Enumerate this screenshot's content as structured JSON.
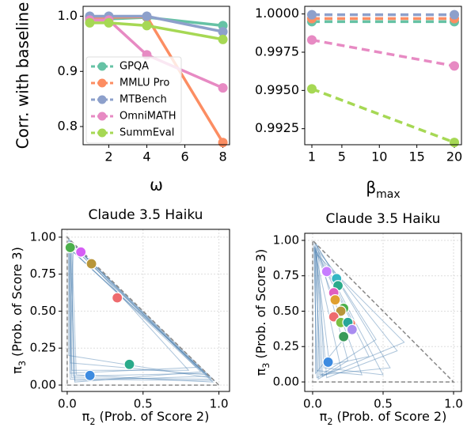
{
  "chart_data": [
    {
      "type": "line",
      "xlabel": "ω",
      "ylabel": "Corr. with baseline",
      "linestyle": "solid",
      "legend": "lower left",
      "grid": false,
      "x": [
        1,
        2,
        4,
        8
      ],
      "xlim": [
        0.65,
        8.35
      ],
      "xticks": [
        2,
        4,
        6,
        8
      ],
      "ylim": [
        0.767,
        1.018
      ],
      "yticks": [
        0.8,
        0.9,
        {
          "value": 1,
          "label": "1.0"
        }
      ],
      "series": [
        {
          "name": "GPQA",
          "color": "#66c2a5",
          "values": [
            0.995,
            0.995,
            0.998,
            0.983
          ]
        },
        {
          "name": "MMLU Pro",
          "color": "#fc8d62",
          "values": [
            0.998,
            0.998,
            0.999,
            0.771
          ]
        },
        {
          "name": "MTBench",
          "color": "#8da0cb",
          "values": [
            1.0,
            1.0,
            1.0,
            0.972
          ]
        },
        {
          "name": "OmniMATH",
          "color": "#e78ac3",
          "values": [
            0.993,
            0.993,
            0.93,
            0.87
          ]
        },
        {
          "name": "SummEval",
          "color": "#a6d854",
          "values": [
            0.988,
            0.988,
            0.983,
            0.958
          ]
        }
      ]
    },
    {
      "type": "line",
      "xlabel": {
        "main": "β",
        "sub": "max"
      },
      "linestyle": "dashed",
      "grid": false,
      "x": [
        1,
        20
      ],
      "xlim": [
        0.05,
        20.95
      ],
      "xticks": [
        1,
        5,
        10,
        15,
        20
      ],
      "ylim": [
        0.99145,
        1.0005
      ],
      "yticks": [
        0.9925,
        {
          "value": 0.995,
          "label": "0.9950"
        },
        0.9975,
        {
          "value": 1,
          "label": "1.0000"
        }
      ],
      "series": [
        {
          "name": "GPQA",
          "color": "#66c2a5",
          "values": [
            0.9995,
            0.9995
          ]
        },
        {
          "name": "MMLU Pro",
          "color": "#fc8d62",
          "values": [
            0.9997,
            0.9997
          ]
        },
        {
          "name": "MTBench",
          "color": "#8da0cb",
          "values": [
            0.99995,
            0.99995
          ]
        },
        {
          "name": "OmniMATH",
          "color": "#e78ac3",
          "values": [
            0.9983,
            0.9966
          ]
        },
        {
          "name": "SummEval",
          "color": "#a6d854",
          "values": [
            0.9951,
            0.9916
          ]
        }
      ]
    },
    {
      "type": "scatter",
      "title": "Claude 3.5 Haiku",
      "grid": true,
      "xlabel": {
        "main": "π",
        "sub": "2",
        "rest": " (Prob. of Score 2)"
      },
      "ylabel": {
        "main": "π",
        "sub": "3",
        "rest": " (Prob. of Score 3)"
      },
      "xlim": [
        -0.036,
        1.07
      ],
      "xticks": [
        {
          "value": 0,
          "label": "0.0"
        },
        0.5,
        {
          "value": 1,
          "label": "1.0"
        }
      ],
      "ylim": [
        -0.043,
        1.053
      ],
      "yticks": [
        {
          "value": 0,
          "label": "0.00"
        },
        0.25,
        {
          "value": 0.5,
          "label": "0.50"
        },
        0.75,
        {
          "value": 1,
          "label": "1.00"
        }
      ],
      "triangle_color": "#4a7fb0",
      "triangles": [
        {
          "x": [
            0.02,
            0.95,
            0.03
          ],
          "y": [
            0.97,
            0.04,
            0.05
          ]
        },
        {
          "x": [
            0.01,
            0.97,
            0.02
          ],
          "y": [
            0.98,
            0.03,
            0.04
          ]
        },
        {
          "x": [
            0.03,
            0.9,
            0.04
          ],
          "y": [
            0.96,
            0.08,
            0.06
          ]
        },
        {
          "x": [
            0.02,
            0.93,
            0.05
          ],
          "y": [
            0.95,
            0.06,
            0.03
          ]
        },
        {
          "x": [
            0.02,
            0.85,
            0.02
          ],
          "y": [
            0.92,
            0.12,
            0.08
          ]
        },
        {
          "x": [
            0.03,
            0.96,
            0.06
          ],
          "y": [
            0.94,
            0.02,
            0.07
          ]
        },
        {
          "x": [
            0.01,
            0.8,
            0.03
          ],
          "y": [
            0.99,
            0.1,
            0.1
          ]
        },
        {
          "x": [
            0.04,
            0.92,
            0.02
          ],
          "y": [
            0.9,
            0.07,
            0.15
          ]
        },
        {
          "x": [
            0.02,
            0.88,
            0.05
          ],
          "y": [
            0.97,
            0.09,
            0.02
          ]
        },
        {
          "x": [
            0.01,
            0.94,
            0.01
          ],
          "y": [
            0.93,
            0.05,
            0.2
          ]
        }
      ],
      "points": {
        "x": [
          0.02,
          0.09,
          0.16,
          0.33,
          0.41,
          0.15
        ],
        "y": [
          0.93,
          0.9,
          0.82,
          0.59,
          0.14,
          0.065
        ],
        "colors": [
          "#4cb04c",
          "#d65ef5",
          "#b8963a",
          "#ee6b6e",
          "#2aaa8a",
          "#3d8be0"
        ]
      }
    },
    {
      "type": "scatter",
      "title": "Claude 3.5 Haiku",
      "grid": true,
      "xlabel": {
        "main": "π",
        "sub": "2",
        "rest": " (Prob. of Score 2)"
      },
      "ylabel": {
        "main": "π",
        "sub": "3",
        "rest": " (Prob. of Score 3)"
      },
      "xlim": [
        -0.056,
        1.056
      ],
      "xticks": [
        {
          "value": 0,
          "label": "0.0"
        },
        0.5,
        {
          "value": 1,
          "label": "1.0"
        }
      ],
      "ylim": [
        -0.067,
        1.05
      ],
      "yticks": [
        {
          "value": 0,
          "label": "0.00"
        },
        0.25,
        {
          "value": 0.5,
          "label": "0.50"
        },
        0.75,
        {
          "value": 1,
          "label": "1.00"
        }
      ],
      "triangle_color": "#4a7fb0",
      "triangles": [
        {
          "x": [
            0.02,
            0.55,
            0.05
          ],
          "y": [
            0.98,
            0.1,
            0.05
          ]
        },
        {
          "x": [
            0.01,
            0.35,
            0.03
          ],
          "y": [
            0.96,
            0.05,
            0.08
          ]
        },
        {
          "x": [
            0.02,
            0.6,
            0.1
          ],
          "y": [
            0.95,
            0.22,
            0.03
          ]
        },
        {
          "x": [
            0.03,
            0.25,
            0.04
          ],
          "y": [
            0.97,
            0.15,
            0.02
          ]
        },
        {
          "x": [
            0.01,
            0.45,
            0.06
          ],
          "y": [
            0.99,
            0.3,
            0.05
          ]
        },
        {
          "x": [
            0.02,
            0.3,
            0.02
          ],
          "y": [
            0.94,
            0.4,
            0.06
          ]
        },
        {
          "x": [
            0.04,
            0.5,
            0.08
          ],
          "y": [
            0.92,
            0.05,
            0.1
          ]
        },
        {
          "x": [
            0.01,
            0.2,
            0.03
          ],
          "y": [
            0.95,
            0.1,
            0.03
          ]
        },
        {
          "x": [
            0.02,
            0.4,
            0.12
          ],
          "y": [
            0.93,
            0.18,
            0.12
          ]
        },
        {
          "x": [
            0.03,
            0.65,
            0.07
          ],
          "y": [
            0.9,
            0.28,
            0.04
          ]
        }
      ],
      "points": {
        "x": [
          0.1,
          0.17,
          0.18,
          0.15,
          0.16,
          0.22,
          0.2,
          0.15,
          0.27,
          0.2,
          0.25,
          0.28,
          0.22,
          0.11
        ],
        "y": [
          0.78,
          0.73,
          0.68,
          0.63,
          0.58,
          0.52,
          0.5,
          0.46,
          0.41,
          0.42,
          0.42,
          0.37,
          0.32,
          0.14
        ],
        "colors": [
          "#c77dff",
          "#35b6c4",
          "#2aaa8a",
          "#e05fc0",
          "#e0a030",
          "#4cb04c",
          "#b8963a",
          "#ee6b6e",
          "#f28a7a",
          "#7bc043",
          "#29a69a",
          "#a98cf0",
          "#3a9a5a",
          "#3d8be0"
        ]
      }
    }
  ]
}
